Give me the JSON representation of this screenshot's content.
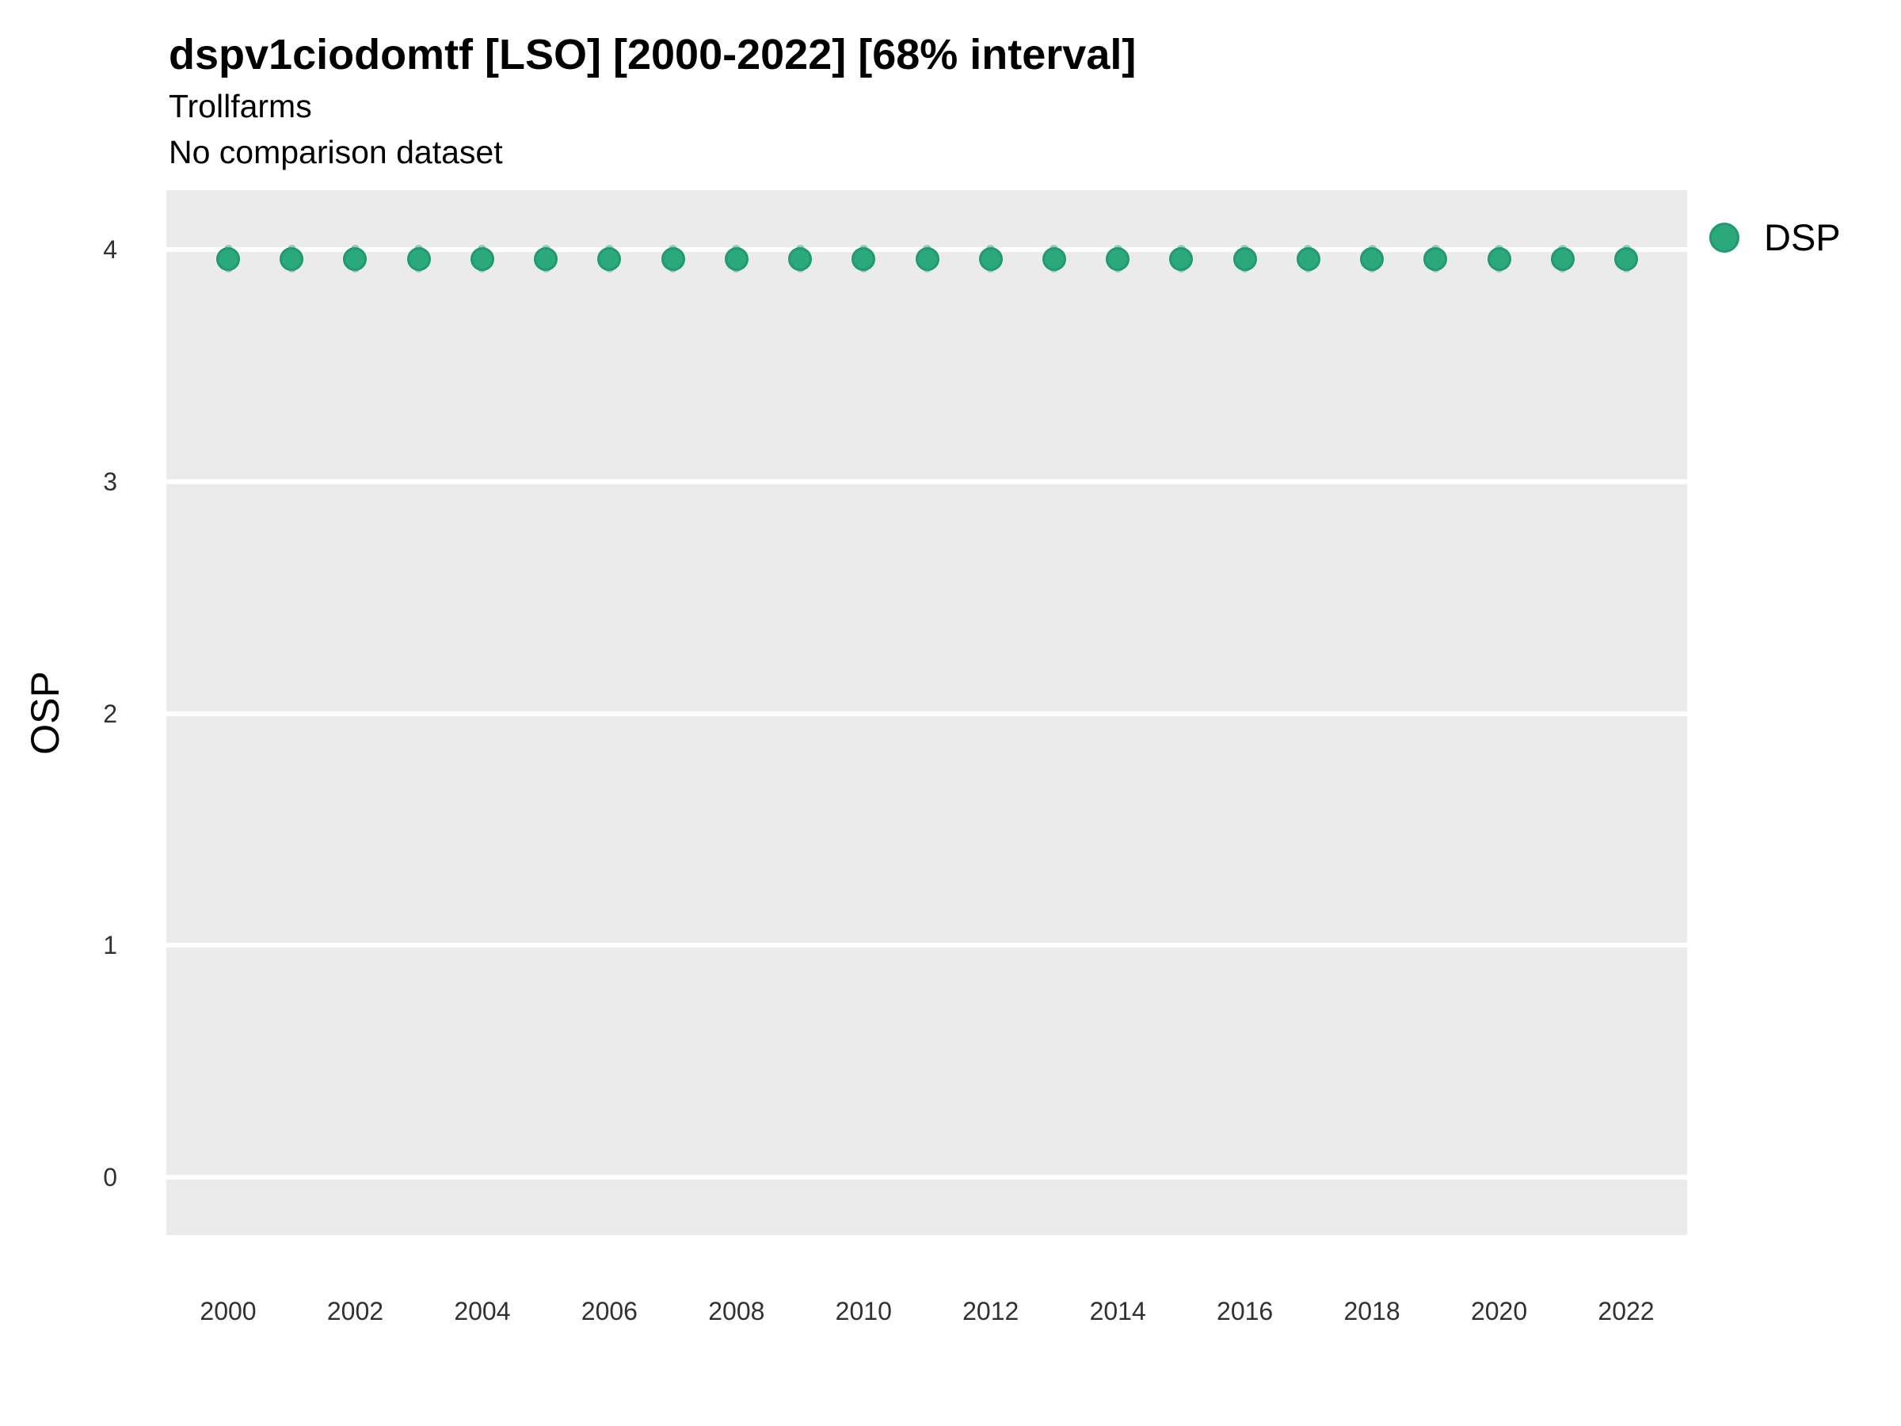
{
  "title": "dspv1ciodomtf [LSO] [2000-2022] [68% interval]",
  "subtitle": "Trollfarms",
  "comparison_note": "No comparison dataset",
  "axes": {
    "y_label": "OSP",
    "y_ticks": [
      0,
      1,
      2,
      3,
      4
    ],
    "x_ticks": [
      2000,
      2002,
      2004,
      2006,
      2008,
      2010,
      2012,
      2014,
      2016,
      2018,
      2020,
      2022
    ]
  },
  "legend": {
    "position": "right",
    "items": [
      {
        "label": "DSP",
        "color": "#2ca87d"
      }
    ]
  },
  "colors": {
    "point_fill": "#2ca87d",
    "point_stroke": "#229a6f",
    "interval": "rgba(44,168,125,0.45)",
    "panel_bg": "#ebebeb",
    "grid": "#ffffff",
    "text": "#000000",
    "tick_text": "#313131"
  },
  "chart_data": {
    "type": "scatter",
    "title": "dspv1ciodomtf [LSO] [2000-2022] [68% interval]",
    "subtitle": "Trollfarms",
    "note": "No comparison dataset",
    "xlabel": "",
    "ylabel": "OSP",
    "interval_level": "68%",
    "grid": "horizontal-major",
    "legend_position": "right",
    "xlim": [
      2000,
      2022
    ],
    "ylim": [
      -0.25,
      4.26
    ],
    "yticks": [
      0,
      1,
      2,
      3,
      4
    ],
    "xticks": [
      2000,
      2002,
      2004,
      2006,
      2008,
      2010,
      2012,
      2014,
      2016,
      2018,
      2020,
      2022
    ],
    "series": [
      {
        "name": "DSP",
        "x": [
          2000,
          2001,
          2002,
          2003,
          2004,
          2005,
          2006,
          2007,
          2008,
          2009,
          2010,
          2011,
          2012,
          2013,
          2014,
          2015,
          2016,
          2017,
          2018,
          2019,
          2020,
          2021,
          2022
        ],
        "y": [
          3.96,
          3.96,
          3.96,
          3.96,
          3.96,
          3.96,
          3.96,
          3.96,
          3.96,
          3.96,
          3.96,
          3.96,
          3.96,
          3.96,
          3.96,
          3.96,
          3.96,
          3.96,
          3.96,
          3.96,
          3.96,
          3.96,
          3.96
        ],
        "interval_low": [
          3.9,
          3.9,
          3.9,
          3.9,
          3.9,
          3.9,
          3.9,
          3.9,
          3.9,
          3.9,
          3.9,
          3.9,
          3.9,
          3.9,
          3.9,
          3.9,
          3.9,
          3.9,
          3.9,
          3.9,
          3.9,
          3.9,
          3.9
        ],
        "interval_high": [
          4.02,
          4.02,
          4.02,
          4.02,
          4.02,
          4.02,
          4.02,
          4.02,
          4.02,
          4.02,
          4.02,
          4.02,
          4.02,
          4.02,
          4.02,
          4.02,
          4.02,
          4.02,
          4.02,
          4.02,
          4.02,
          4.02,
          4.02
        ]
      }
    ]
  }
}
